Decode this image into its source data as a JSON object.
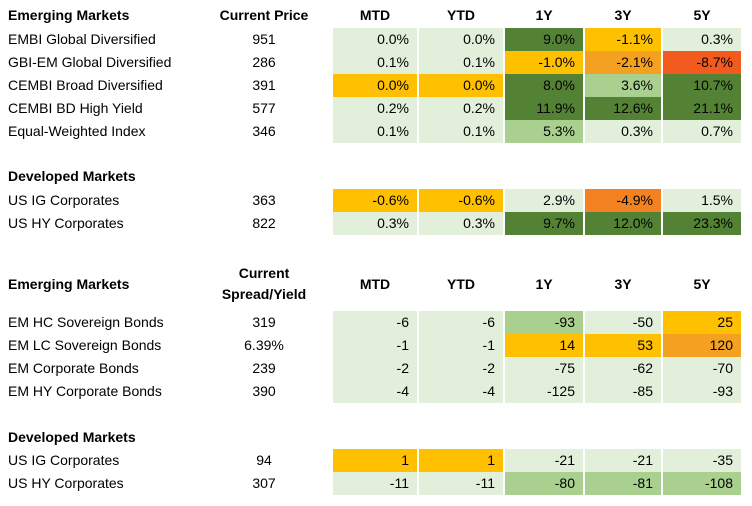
{
  "table1": {
    "headers": {
      "section": "Emerging Markets",
      "price": "Current Price",
      "cols": [
        "MTD",
        "YTD",
        "1Y",
        "3Y",
        "5Y"
      ]
    },
    "rows": [
      {
        "name": "EMBI Global Diversified",
        "price": "951",
        "cells": [
          {
            "v": "0.0%",
            "c": "light"
          },
          {
            "v": "0.0%",
            "c": "light"
          },
          {
            "v": "9.0%",
            "c": "dark"
          },
          {
            "v": "-1.1%",
            "c": "yellow"
          },
          {
            "v": "0.3%",
            "c": "light"
          }
        ]
      },
      {
        "name": "GBI-EM Global Diversified",
        "price": "286",
        "cells": [
          {
            "v": "0.1%",
            "c": "light"
          },
          {
            "v": "0.1%",
            "c": "light"
          },
          {
            "v": "-1.0%",
            "c": "yellow"
          },
          {
            "v": "-2.1%",
            "c": "orange"
          },
          {
            "v": "-8.7%",
            "c": "red"
          }
        ]
      },
      {
        "name": "CEMBI Broad Diversified",
        "price": "391",
        "cells": [
          {
            "v": "0.0%",
            "c": "yellow"
          },
          {
            "v": "0.0%",
            "c": "yellow"
          },
          {
            "v": "8.0%",
            "c": "dark"
          },
          {
            "v": "3.6%",
            "c": "mid"
          },
          {
            "v": "10.7%",
            "c": "dark"
          }
        ]
      },
      {
        "name": "CEMBI BD High Yield",
        "price": "577",
        "cells": [
          {
            "v": "0.2%",
            "c": "light"
          },
          {
            "v": "0.2%",
            "c": "light"
          },
          {
            "v": "11.9%",
            "c": "dark"
          },
          {
            "v": "12.6%",
            "c": "dark"
          },
          {
            "v": "21.1%",
            "c": "dark"
          }
        ]
      },
      {
        "name": "Equal-Weighted Index",
        "price": "346",
        "cells": [
          {
            "v": "0.1%",
            "c": "light"
          },
          {
            "v": "0.1%",
            "c": "light"
          },
          {
            "v": "5.3%",
            "c": "mid"
          },
          {
            "v": "0.3%",
            "c": "light"
          },
          {
            "v": "0.7%",
            "c": "light"
          }
        ]
      }
    ]
  },
  "table2": {
    "section": "Developed Markets",
    "rows": [
      {
        "name": "US IG Corporates",
        "price": "363",
        "cells": [
          {
            "v": "-0.6%",
            "c": "yellow"
          },
          {
            "v": "-0.6%",
            "c": "yellow"
          },
          {
            "v": "2.9%",
            "c": "light"
          },
          {
            "v": "-4.9%",
            "c": "dorange"
          },
          {
            "v": "1.5%",
            "c": "light"
          }
        ]
      },
      {
        "name": "US HY Corporates",
        "price": "822",
        "cells": [
          {
            "v": "0.3%",
            "c": "light"
          },
          {
            "v": "0.3%",
            "c": "light"
          },
          {
            "v": "9.7%",
            "c": "dark"
          },
          {
            "v": "12.0%",
            "c": "dark"
          },
          {
            "v": "23.3%",
            "c": "dark"
          }
        ]
      }
    ]
  },
  "table3": {
    "headers": {
      "section": "Emerging Markets",
      "price_line1": "Current",
      "price_line2": "Spread/Yield",
      "cols": [
        "MTD",
        "YTD",
        "1Y",
        "3Y",
        "5Y"
      ]
    },
    "rows": [
      {
        "name": "EM HC Sovereign Bonds",
        "price": "319",
        "cells": [
          {
            "v": "-6",
            "c": "light"
          },
          {
            "v": "-6",
            "c": "light"
          },
          {
            "v": "-93",
            "c": "mid"
          },
          {
            "v": "-50",
            "c": "light"
          },
          {
            "v": "25",
            "c": "yellow"
          }
        ]
      },
      {
        "name": "EM LC Sovereign Bonds",
        "price": "6.39%",
        "cells": [
          {
            "v": "-1",
            "c": "light"
          },
          {
            "v": "-1",
            "c": "light"
          },
          {
            "v": "14",
            "c": "yellow"
          },
          {
            "v": "53",
            "c": "yellow"
          },
          {
            "v": "120",
            "c": "orange"
          }
        ]
      },
      {
        "name": "EM Corporate Bonds",
        "price": "239",
        "cells": [
          {
            "v": "-2",
            "c": "light"
          },
          {
            "v": "-2",
            "c": "light"
          },
          {
            "v": "-75",
            "c": "light"
          },
          {
            "v": "-62",
            "c": "light"
          },
          {
            "v": "-70",
            "c": "light"
          }
        ]
      },
      {
        "name": "EM HY Corporate Bonds",
        "price": "390",
        "cells": [
          {
            "v": "-4",
            "c": "light"
          },
          {
            "v": "-4",
            "c": "light"
          },
          {
            "v": "-125",
            "c": "light"
          },
          {
            "v": "-85",
            "c": "light"
          },
          {
            "v": "-93",
            "c": "light"
          }
        ]
      }
    ]
  },
  "table4": {
    "section": "Developed Markets",
    "rows": [
      {
        "name": "US IG Corporates",
        "price": "94",
        "cells": [
          {
            "v": "1",
            "c": "yellow"
          },
          {
            "v": "1",
            "c": "yellow"
          },
          {
            "v": "-21",
            "c": "light"
          },
          {
            "v": "-21",
            "c": "light"
          },
          {
            "v": "-35",
            "c": "light"
          }
        ]
      },
      {
        "name": "US HY Corporates",
        "price": "307",
        "cells": [
          {
            "v": "-11",
            "c": "light"
          },
          {
            "v": "-11",
            "c": "light"
          },
          {
            "v": "-80",
            "c": "mid"
          },
          {
            "v": "-81",
            "c": "mid"
          },
          {
            "v": "-108",
            "c": "mid"
          }
        ]
      }
    ]
  }
}
